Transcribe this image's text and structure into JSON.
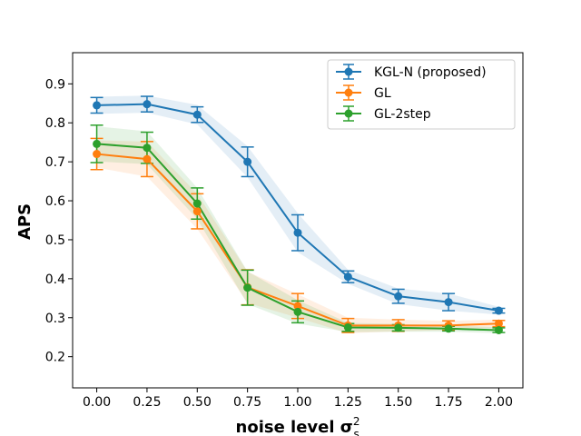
{
  "chart_data": {
    "type": "line",
    "title": "",
    "xlabel": "noise level σ",
    "xlabel_sup": "2",
    "xlabel_sub": "s",
    "ylabel": "APS",
    "x": [
      0.0,
      0.25,
      0.5,
      0.75,
      1.0,
      1.25,
      1.5,
      1.75,
      2.0
    ],
    "xlim": [
      -0.12,
      2.12
    ],
    "ylim": [
      0.12,
      0.98
    ],
    "xticks": [
      "0.00",
      "0.25",
      "0.50",
      "0.75",
      "1.00",
      "1.25",
      "1.50",
      "1.75",
      "2.00"
    ],
    "xtick_values": [
      0.0,
      0.25,
      0.5,
      0.75,
      1.0,
      1.25,
      1.5,
      1.75,
      2.0
    ],
    "yticks": [
      "0.2",
      "0.3",
      "0.4",
      "0.5",
      "0.6",
      "0.7",
      "0.8",
      "0.9"
    ],
    "ytick_values": [
      0.2,
      0.3,
      0.4,
      0.5,
      0.6,
      0.7,
      0.8,
      0.9
    ],
    "grid": false,
    "legend_position": "top-right",
    "series": [
      {
        "name": "KGL-N (proposed)",
        "color": "#1f77b4",
        "values": [
          0.845,
          0.848,
          0.821,
          0.7,
          0.518,
          0.405,
          0.355,
          0.34,
          0.318
        ],
        "err": [
          0.02,
          0.02,
          0.02,
          0.038,
          0.046,
          0.015,
          0.018,
          0.022,
          0.006
        ],
        "band": [
          0.022,
          0.022,
          0.025,
          0.04,
          0.05,
          0.018,
          0.02,
          0.022,
          0.01
        ]
      },
      {
        "name": "GL",
        "color": "#ff7f0e",
        "values": [
          0.72,
          0.707,
          0.573,
          0.378,
          0.33,
          0.28,
          0.28,
          0.28,
          0.285
        ],
        "err": [
          0.04,
          0.045,
          0.045,
          0.045,
          0.032,
          0.018,
          0.015,
          0.012,
          0.008
        ],
        "band": [
          0.035,
          0.045,
          0.045,
          0.04,
          0.03,
          0.02,
          0.015,
          0.012,
          0.01
        ]
      },
      {
        "name": "GL-2step",
        "color": "#2ca02c",
        "values": [
          0.746,
          0.736,
          0.593,
          0.377,
          0.315,
          0.275,
          0.274,
          0.272,
          0.268
        ],
        "err": [
          0.048,
          0.04,
          0.04,
          0.045,
          0.028,
          0.01,
          0.008,
          0.006,
          0.006
        ],
        "band": [
          0.045,
          0.042,
          0.04,
          0.042,
          0.03,
          0.012,
          0.01,
          0.008,
          0.008
        ]
      }
    ]
  }
}
